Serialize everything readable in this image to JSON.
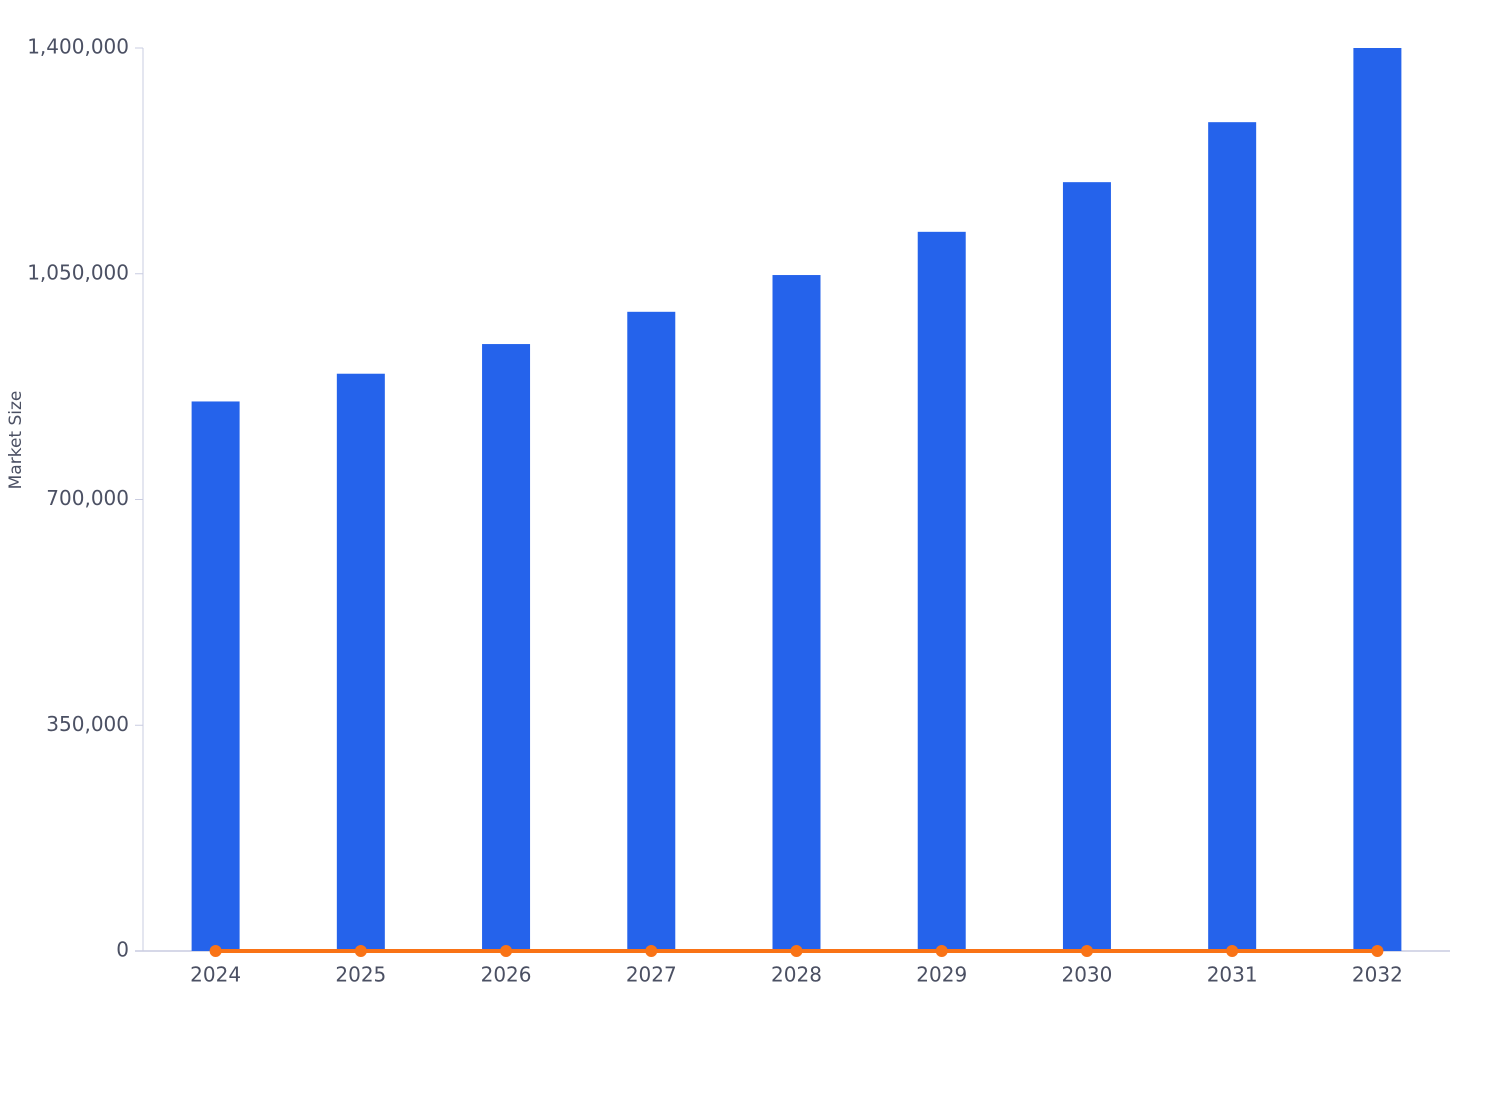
{
  "chart_data": {
    "type": "bar",
    "y_label": "Market Size",
    "categories": [
      "2024",
      "2025",
      "2026",
      "2027",
      "2028",
      "2029",
      "2030",
      "2031",
      "2032"
    ],
    "series": [
      {
        "type": "bar",
        "color": "#2563eb",
        "values": [
          852000,
          895000,
          941000,
          991000,
          1048000,
          1115000,
          1192000,
          1285000,
          1400000
        ]
      },
      {
        "type": "line",
        "color": "#f97316",
        "values": [
          0,
          0,
          0,
          0,
          0,
          0,
          0,
          0,
          0
        ]
      }
    ],
    "ylim": [
      0,
      1400000
    ],
    "yticks": [
      0,
      {
        "value": 350000,
        "label": "350,000"
      },
      {
        "value": 700000,
        "label": "700,000"
      },
      {
        "value": 1050000,
        "label": "1,050,000"
      },
      {
        "value": 1400000,
        "label": "1,400,000"
      }
    ]
  }
}
